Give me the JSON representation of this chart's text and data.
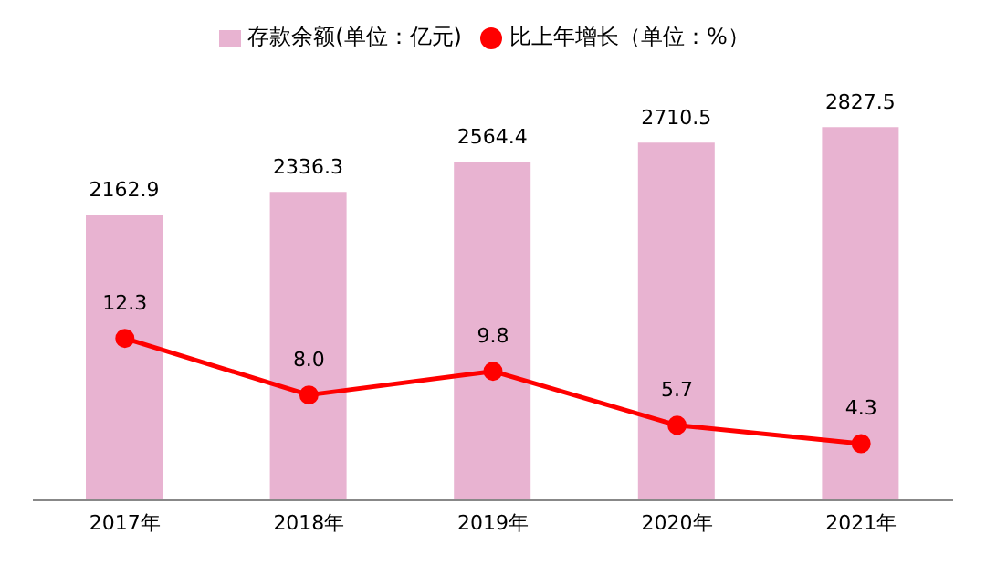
{
  "chart_data": {
    "type": "bar",
    "categories": [
      "2017年",
      "2018年",
      "2019年",
      "2020年",
      "2021年"
    ],
    "series": [
      {
        "name": "存款余额(单位：亿元)",
        "color": "#e8b3d1",
        "values": [
          2162.9,
          2336.3,
          2564.4,
          2710.5,
          2827.5
        ],
        "value_labels": [
          "2162.9",
          "2336.3",
          "2564.4",
          "2710.5",
          "2827.5"
        ]
      },
      {
        "name": "比上年增长（单位：%）",
        "type": "line",
        "axis": "y2",
        "color": "#ff0000",
        "values": [
          12.3,
          8.0,
          9.8,
          5.7,
          4.3
        ],
        "value_labels": [
          "12.3",
          "8.0",
          "9.8",
          "5.7",
          "4.3"
        ]
      }
    ],
    "tick_labels": "x",
    "legend": "top",
    "marker": "circle",
    "line_style": "solid"
  }
}
